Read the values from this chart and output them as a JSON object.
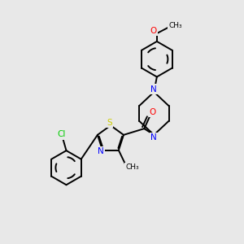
{
  "background_color": "#e8e8e8",
  "bond_color": "#000000",
  "sulfur_color": "#cccc00",
  "nitrogen_color": "#0000ff",
  "oxygen_color": "#ff0000",
  "chlorine_color": "#00cc00",
  "line_width": 1.4,
  "figsize": [
    3.0,
    3.0
  ],
  "dpi": 100,
  "xlim": [
    0.5,
    8.5
  ],
  "ylim": [
    1.0,
    9.5
  ]
}
